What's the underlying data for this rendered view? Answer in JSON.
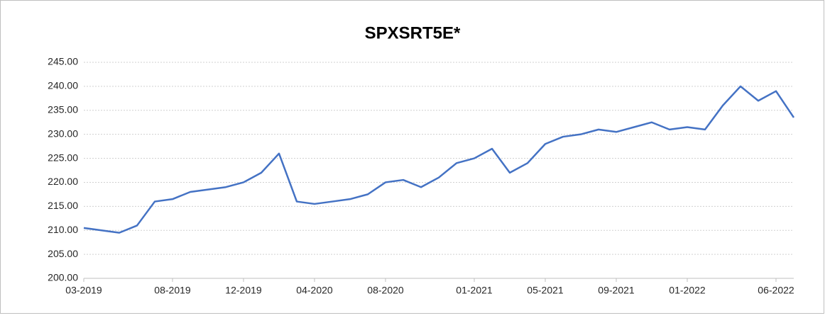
{
  "chart_data": {
    "type": "line",
    "title": "SPXSRT5E*",
    "x": [
      "03-2019",
      "04-2019",
      "05-2019",
      "06-2019",
      "07-2019",
      "08-2019",
      "09-2019",
      "10-2019",
      "11-2019",
      "12-2019",
      "01-2020",
      "02-2020",
      "03-2020",
      "04-2020",
      "05-2020",
      "06-2020",
      "07-2020",
      "08-2020",
      "09-2020",
      "10-2020",
      "11-2020",
      "12-2020",
      "01-2021",
      "02-2021",
      "03-2021",
      "04-2021",
      "05-2021",
      "06-2021",
      "07-2021",
      "08-2021",
      "09-2021",
      "10-2021",
      "11-2021",
      "12-2021",
      "01-2022",
      "02-2022",
      "03-2022",
      "04-2022",
      "05-2022",
      "06-2022",
      "07-2022"
    ],
    "series": [
      {
        "name": "SPXSRT5E*",
        "color": "#4472c4",
        "values": [
          210.5,
          210,
          209.5,
          211,
          216,
          216.5,
          218,
          218.5,
          219,
          220,
          222,
          226,
          216,
          215.5,
          216,
          216.5,
          217.5,
          220,
          220.5,
          219,
          221,
          224,
          225,
          227,
          222,
          224,
          228,
          229.5,
          230,
          231,
          230.5,
          231.5,
          232.5,
          231,
          231.5,
          231,
          236,
          240,
          237,
          239,
          233.5
        ]
      }
    ],
    "xlim": [
      "03-2019",
      "07-2022"
    ],
    "xticks": [
      "03-2019",
      "08-2019",
      "12-2019",
      "04-2020",
      "08-2020",
      "01-2021",
      "05-2021",
      "09-2021",
      "01-2022",
      "06-2022"
    ],
    "ylim": [
      200,
      245
    ],
    "yticks": [
      {
        "value": 200,
        "label": "200.00"
      },
      {
        "value": 205,
        "label": "205.00"
      },
      {
        "value": 210,
        "label": "210.00"
      },
      {
        "value": 215,
        "label": "215.00"
      },
      {
        "value": 220,
        "label": "220.00"
      },
      {
        "value": 225,
        "label": "225.00"
      },
      {
        "value": 230,
        "label": "230.00"
      },
      {
        "value": 235,
        "label": "235.00"
      },
      {
        "value": 240,
        "label": "240.00"
      },
      {
        "value": 245,
        "label": "245.00"
      }
    ],
    "grid": true
  }
}
